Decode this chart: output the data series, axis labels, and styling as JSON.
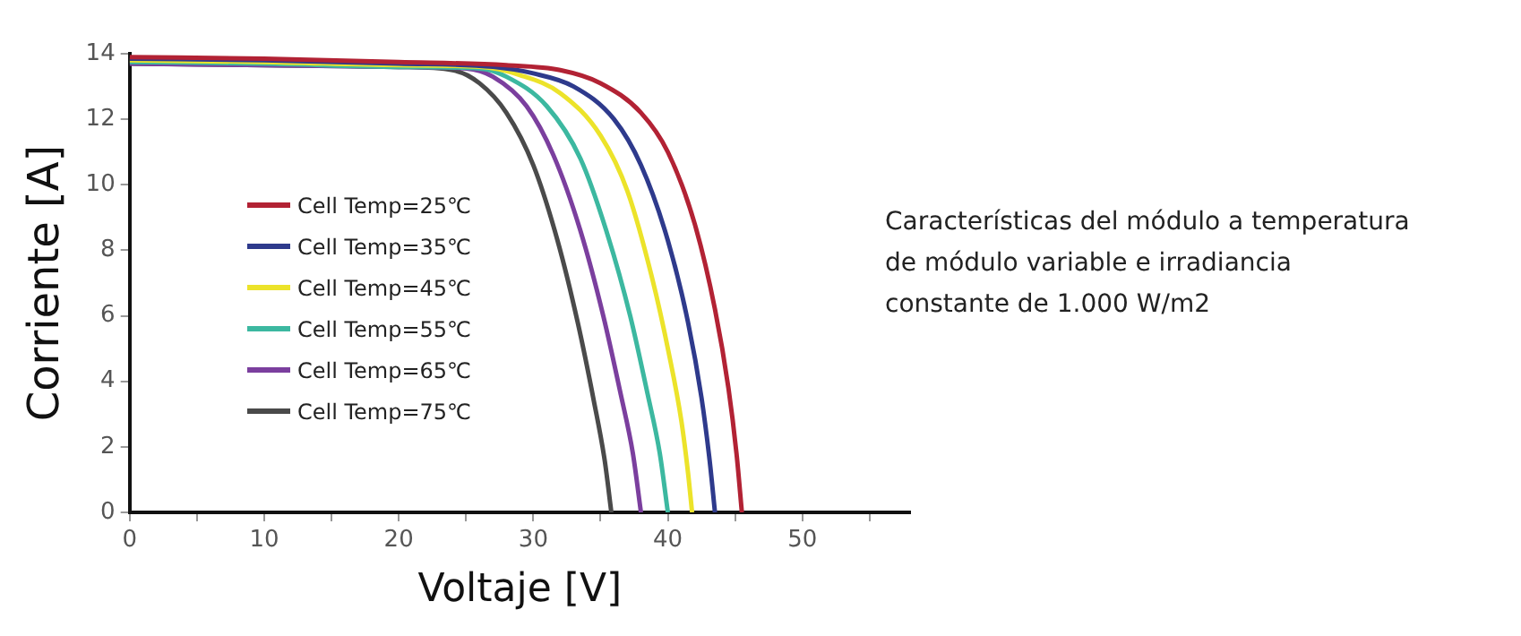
{
  "chart_data": {
    "type": "line",
    "xlabel": "Voltaje [V]",
    "ylabel": "Corriente [A]",
    "xlim": [
      0,
      58
    ],
    "xticks": [
      0,
      {
        "value": 5,
        "label": null
      },
      10,
      {
        "value": 15,
        "label": null
      },
      20,
      {
        "value": 25,
        "label": null
      },
      30,
      {
        "value": 35,
        "label": null
      },
      40,
      {
        "value": 45,
        "label": null
      },
      50,
      {
        "value": 55,
        "label": null
      }
    ],
    "ylim": [
      0,
      14
    ],
    "yticks": [
      0,
      2,
      4,
      6,
      8,
      10,
      12,
      14
    ],
    "grid": false,
    "legend": "left",
    "marker": "none",
    "line_style": "solid",
    "annotations": [
      "Características del módulo a temperatura de módulo variable e irradiancia constante de 1.000 W/m2"
    ],
    "series": [
      {
        "name": "Cell Temp=25℃",
        "color": "#b22234",
        "x": [
          0,
          10,
          20,
          28,
          32,
          35,
          38,
          40,
          42,
          43.5,
          44.5,
          45.1,
          45.5
        ],
        "values": [
          13.9,
          13.85,
          13.75,
          13.65,
          13.5,
          13.1,
          12.2,
          11,
          8.8,
          6.2,
          3.8,
          1.8,
          0
        ]
      },
      {
        "name": "Cell Temp=35℃",
        "color": "#2e3a8c",
        "x": [
          0,
          10,
          20,
          27,
          30,
          33,
          36,
          38,
          40,
          41.5,
          42.5,
          43.1,
          43.5
        ],
        "values": [
          13.85,
          13.8,
          13.7,
          13.6,
          13.4,
          13,
          12,
          10.6,
          8.3,
          5.8,
          3.5,
          1.6,
          0
        ]
      },
      {
        "name": "Cell Temp=45℃",
        "color": "#ece32a",
        "x": [
          0,
          10,
          20,
          26,
          29,
          32,
          35,
          37,
          38.8,
          40.1,
          41,
          41.5,
          41.8
        ],
        "values": [
          13.8,
          13.75,
          13.65,
          13.6,
          13.35,
          12.8,
          11.5,
          9.8,
          7.2,
          4.8,
          2.8,
          1.2,
          0
        ]
      },
      {
        "name": "Cell Temp=55℃",
        "color": "#3cb8a0",
        "x": [
          0,
          10,
          20,
          26,
          28,
          31,
          33.5,
          35.5,
          37.2,
          38.5,
          39.4,
          40
        ],
        "values": [
          13.75,
          13.7,
          13.6,
          13.55,
          13.3,
          12.4,
          10.8,
          8.5,
          6,
          3.6,
          1.8,
          0
        ]
      },
      {
        "name": "Cell Temp=65℃",
        "color": "#7b3f9e",
        "x": [
          0,
          10,
          20,
          25,
          27,
          29.5,
          31.5,
          33.5,
          35.2,
          36.5,
          37.4,
          38
        ],
        "values": [
          13.7,
          13.65,
          13.6,
          13.55,
          13.3,
          12.4,
          10.9,
          8.6,
          6,
          3.6,
          1.8,
          0
        ]
      },
      {
        "name": "Cell Temp=75℃",
        "color": "#4a4a4a",
        "x": [
          0,
          10,
          20,
          24,
          26,
          28,
          30,
          31.8,
          33.3,
          34.5,
          35.3,
          35.8
        ],
        "values": [
          13.7,
          13.65,
          13.6,
          13.5,
          13.1,
          12.2,
          10.6,
          8.3,
          5.8,
          3.4,
          1.6,
          0
        ]
      }
    ]
  }
}
